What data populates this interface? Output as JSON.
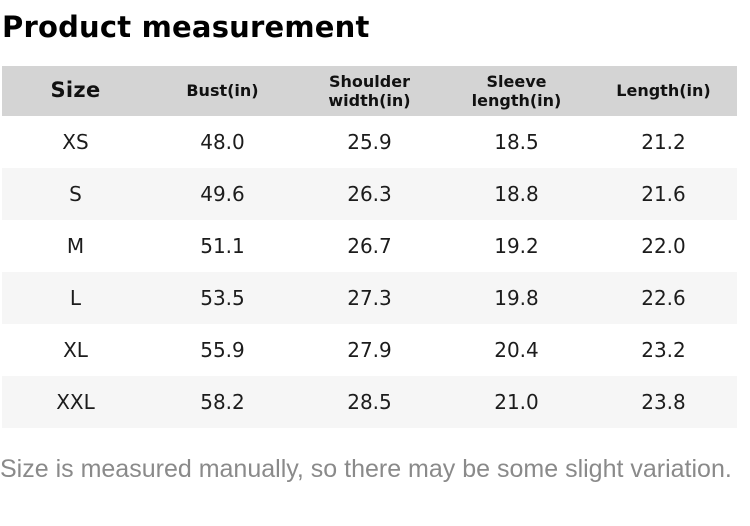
{
  "page": {
    "title": "Product measurement",
    "footnote": "Size is measured manually, so there may be some slight variation."
  },
  "chart_data": {
    "type": "table",
    "title": "Product measurement",
    "columns": [
      "Size",
      "Bust(in)",
      "Shoulder width(in)",
      "Sleeve length(in)",
      "Length(in)"
    ],
    "rows": [
      [
        "XS",
        "48.0",
        "25.9",
        "18.5",
        "21.2"
      ],
      [
        "S",
        "49.6",
        "26.3",
        "18.8",
        "21.6"
      ],
      [
        "M",
        "51.1",
        "26.7",
        "19.2",
        "22.0"
      ],
      [
        "L",
        "53.5",
        "27.3",
        "19.8",
        "22.6"
      ],
      [
        "XL",
        "55.9",
        "27.9",
        "20.4",
        "23.2"
      ],
      [
        "XXL",
        "58.2",
        "28.5",
        "21.0",
        "23.8"
      ]
    ]
  },
  "colors": {
    "header_bg": "#d4d4d4",
    "row_alt_bg": "#f6f6f6",
    "text": "#1c1c1c",
    "footnote_text": "#8a8a8a"
  }
}
